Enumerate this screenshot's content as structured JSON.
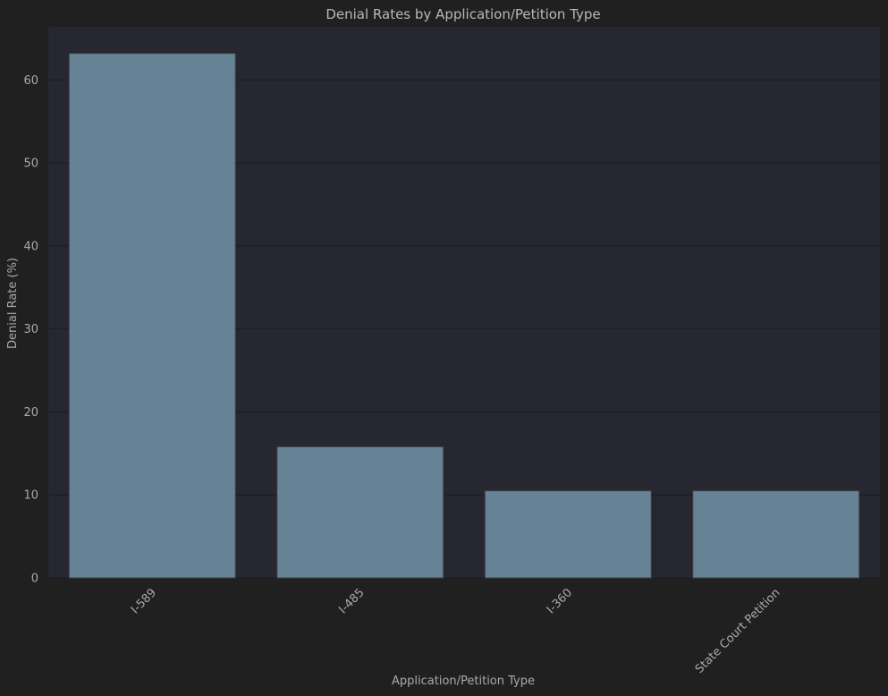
{
  "chart_data": {
    "type": "bar",
    "title": "Denial Rates by Application/Petition Type",
    "xlabel": "Application/Petition Type",
    "ylabel": "Denial Rate (%)",
    "categories": [
      "I-589",
      "I-485",
      "I-360",
      "State Court Petition"
    ],
    "values": [
      63.2,
      15.8,
      10.5,
      10.5
    ],
    "ylim": [
      0,
      66.4
    ],
    "yticks": [
      0,
      10,
      20,
      30,
      40,
      50,
      60
    ],
    "grid": true,
    "colors": {
      "page_background": "#202020",
      "plot_background": "#262730",
      "bar_fill": "#668396",
      "bar_edge": "#3b3f45",
      "gridline": "#1b1c22",
      "text": "#aaaaaa"
    }
  }
}
